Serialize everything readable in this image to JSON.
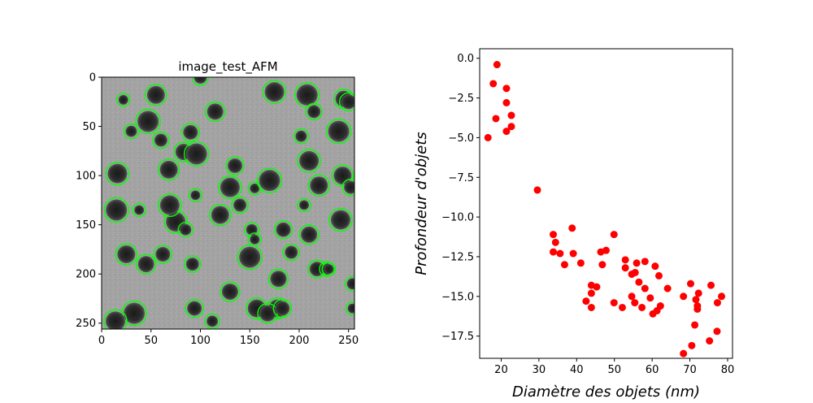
{
  "chart_data": [
    {
      "type": "image",
      "title": "image_test_AFM",
      "xlim": [
        0,
        256
      ],
      "ylim": [
        256,
        0
      ],
      "xticks": [
        0,
        50,
        100,
        150,
        200,
        250
      ],
      "yticks": [
        0,
        50,
        100,
        150,
        200,
        250
      ],
      "image_style": "grayscale AFM surface with dark circular pits outlined by green contours",
      "contour_color": "#00ff00",
      "detected_objects": [
        [
          22,
          23
        ],
        [
          47,
          45
        ],
        [
          16,
          98
        ],
        [
          55,
          18
        ],
        [
          83,
          76
        ],
        [
          90,
          56
        ],
        [
          60,
          64
        ],
        [
          30,
          55
        ],
        [
          38,
          135
        ],
        [
          15,
          135
        ],
        [
          75,
          147
        ],
        [
          25,
          180
        ],
        [
          45,
          190
        ],
        [
          62,
          180
        ],
        [
          100,
          0
        ],
        [
          112,
          248
        ],
        [
          155,
          113
        ],
        [
          150,
          183
        ],
        [
          130,
          112
        ],
        [
          120,
          140
        ],
        [
          130,
          218
        ],
        [
          94,
          235
        ],
        [
          92,
          190
        ],
        [
          85,
          155
        ],
        [
          95,
          120
        ],
        [
          96,
          78
        ],
        [
          69,
          130
        ],
        [
          68,
          94
        ],
        [
          115,
          35
        ],
        [
          135,
          90
        ],
        [
          140,
          130
        ],
        [
          152,
          155
        ],
        [
          155,
          165
        ],
        [
          170,
          105
        ],
        [
          175,
          15
        ],
        [
          178,
          235
        ],
        [
          179,
          205
        ],
        [
          184,
          155
        ],
        [
          192,
          178
        ],
        [
          202,
          60
        ],
        [
          205,
          130
        ],
        [
          208,
          18
        ],
        [
          210,
          85
        ],
        [
          220,
          110
        ],
        [
          210,
          160
        ],
        [
          218,
          195
        ],
        [
          215,
          35
        ],
        [
          228,
          195
        ],
        [
          230,
          195
        ],
        [
          240,
          55
        ],
        [
          242,
          145
        ],
        [
          244,
          100
        ],
        [
          245,
          22
        ],
        [
          250,
          25
        ],
        [
          252,
          112
        ],
        [
          254,
          210
        ],
        [
          254,
          235
        ],
        [
          33,
          240
        ],
        [
          14,
          248
        ],
        [
          157,
          235
        ],
        [
          168,
          240
        ],
        [
          183,
          235
        ]
      ]
    },
    {
      "type": "scatter",
      "title": "",
      "xlabel": "Diamètre des objets (nm)",
      "ylabel": "Profondeur d'objets",
      "xlim": [
        14.3,
        81.3
      ],
      "ylim": [
        -18.9,
        0.6
      ],
      "xticks": [
        20,
        30,
        40,
        50,
        60,
        70,
        80
      ],
      "yticks": [
        0.0,
        -2.5,
        -5.0,
        -7.5,
        -10.0,
        -12.5,
        -15.0,
        -17.5
      ],
      "marker_color": "#ff0000",
      "points": [
        [
          18.9,
          -0.4
        ],
        [
          17.9,
          -1.6
        ],
        [
          21.4,
          -1.9
        ],
        [
          21.4,
          -2.8
        ],
        [
          18.6,
          -3.8
        ],
        [
          22.7,
          -3.6
        ],
        [
          22.7,
          -4.3
        ],
        [
          21.4,
          -4.6
        ],
        [
          16.5,
          -5.0
        ],
        [
          29.6,
          -8.3
        ],
        [
          38.8,
          -10.7
        ],
        [
          33.8,
          -11.1
        ],
        [
          34.4,
          -11.6
        ],
        [
          33.8,
          -12.2
        ],
        [
          35.6,
          -12.3
        ],
        [
          39.1,
          -12.3
        ],
        [
          36.8,
          -13.0
        ],
        [
          41.1,
          -12.9
        ],
        [
          46.4,
          -12.2
        ],
        [
          47.8,
          -12.1
        ],
        [
          49.9,
          -11.1
        ],
        [
          46.8,
          -13.0
        ],
        [
          52.9,
          -12.7
        ],
        [
          52.9,
          -13.2
        ],
        [
          55.9,
          -12.9
        ],
        [
          58.1,
          -12.8
        ],
        [
          60.8,
          -13.1
        ],
        [
          54.6,
          -13.6
        ],
        [
          55.5,
          -13.5
        ],
        [
          56.5,
          -14.1
        ],
        [
          61.8,
          -13.7
        ],
        [
          43.9,
          -14.3
        ],
        [
          43.9,
          -14.8
        ],
        [
          45.3,
          -14.4
        ],
        [
          58.1,
          -14.5
        ],
        [
          64.1,
          -14.5
        ],
        [
          42.5,
          -15.3
        ],
        [
          43.9,
          -15.7
        ],
        [
          49.9,
          -15.4
        ],
        [
          54.6,
          -15.0
        ],
        [
          55.4,
          -15.4
        ],
        [
          59.5,
          -15.1
        ],
        [
          62.2,
          -15.6
        ],
        [
          52.1,
          -15.7
        ],
        [
          57.3,
          -15.7
        ],
        [
          61.3,
          -15.9
        ],
        [
          60.2,
          -16.1
        ],
        [
          68.3,
          -15.0
        ],
        [
          72.3,
          -14.8
        ],
        [
          71.6,
          -15.2
        ],
        [
          72.0,
          -15.6
        ],
        [
          72.0,
          -15.8
        ],
        [
          70.2,
          -14.2
        ],
        [
          75.6,
          -14.3
        ],
        [
          78.4,
          -15.0
        ],
        [
          77.3,
          -15.4
        ],
        [
          71.3,
          -16.8
        ],
        [
          77.2,
          -17.2
        ],
        [
          75.2,
          -17.8
        ],
        [
          70.5,
          -18.1
        ],
        [
          68.3,
          -18.6
        ]
      ]
    }
  ]
}
